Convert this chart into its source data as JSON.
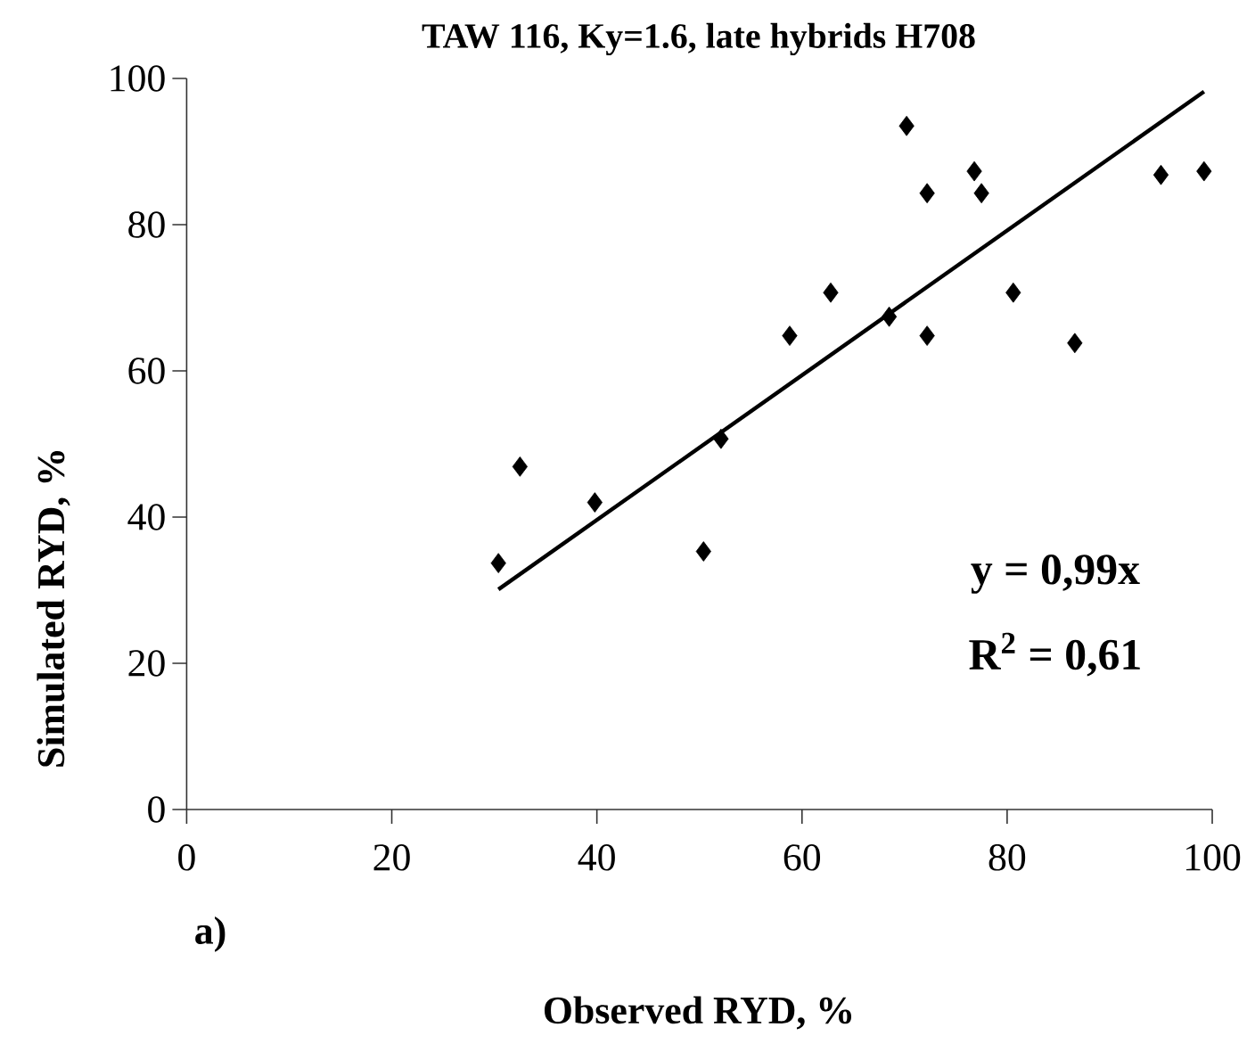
{
  "chart_data": {
    "type": "scatter",
    "title": "TAW 116, Ky=1.6, late hybrids H708",
    "xlabel": "Observed RYD, %",
    "ylabel": "Simulated RYD, %",
    "xlim": [
      0,
      100
    ],
    "ylim": [
      0,
      100
    ],
    "xticks": [
      0,
      20,
      40,
      60,
      80,
      100
    ],
    "yticks": [
      0,
      20,
      40,
      60,
      80,
      100
    ],
    "grid": false,
    "marker": "diamond",
    "series": [
      {
        "color": "#000000",
        "x": [
          30.4,
          32.5,
          39.8,
          50.4,
          52.1,
          58.8,
          62.8,
          68.5,
          70.2,
          72.2,
          72.2,
          76.8,
          77.5,
          80.6,
          86.6,
          95.0,
          99.2
        ],
        "values": [
          33.7,
          46.9,
          42.0,
          35.3,
          50.7,
          64.8,
          70.7,
          67.4,
          93.5,
          84.3,
          64.8,
          87.3,
          84.3,
          70.7,
          63.8,
          86.8,
          87.3
        ]
      },
      {
        "type": "line",
        "color": "#000000",
        "marker": "none",
        "line_style": "solid",
        "x": [
          30.4,
          99.2
        ],
        "values": [
          30.1,
          98.2
        ]
      }
    ],
    "annotations": [
      "y = 0,99x",
      "R$^{2}$ = 0,61",
      "a)"
    ]
  }
}
